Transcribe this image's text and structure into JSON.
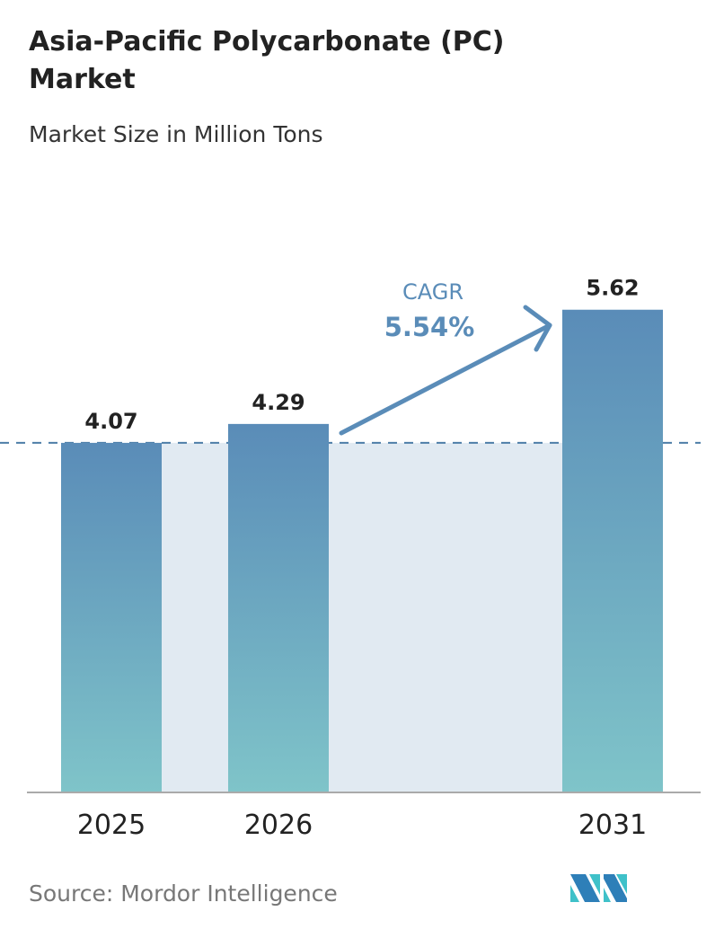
{
  "title": "Asia-Pacific Polycarbonate (PC) Market",
  "subtitle": "Market Size in Million Tons",
  "source": "Source:  Mordor Intelligence",
  "logo_text": "MI",
  "colors": {
    "bar_top": "#5a8cb8",
    "bar_bottom": "#7fc4c9",
    "band": "#e1eaf2",
    "cagr": "#5a8cb8"
  },
  "chart_data": {
    "type": "bar",
    "categories": [
      "2025",
      "2026",
      "2031"
    ],
    "values": [
      4.07,
      4.29,
      5.62
    ],
    "data_labels": [
      "4.07",
      "4.29",
      "5.62"
    ],
    "reference_line": 4.07,
    "annotation": {
      "label": "CAGR",
      "value": "5.54%"
    },
    "ylim": [
      0,
      5.62
    ]
  }
}
